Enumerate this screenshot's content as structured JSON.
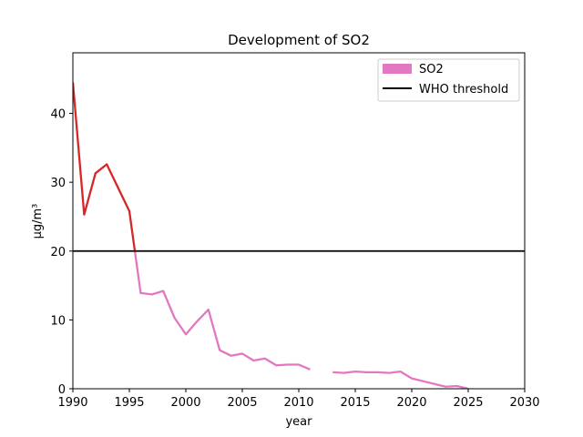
{
  "chart_data": {
    "type": "line",
    "title": "Development of SO2",
    "xlabel": "year",
    "ylabel": "µg/m³",
    "xlim": [
      1990,
      2030
    ],
    "ylim": [
      0,
      48.8
    ],
    "xticks": [
      "1990",
      "1995",
      "2000",
      "2005",
      "2010",
      "2015",
      "2020",
      "2025",
      "2030"
    ],
    "yticks": [
      "0",
      "10",
      "20",
      "30",
      "40"
    ],
    "grid": false,
    "legend_position": "top-right",
    "series": [
      {
        "name": "SO2",
        "color": "#e377c2",
        "above_threshold_color": "#d62728",
        "x": [
          1990,
          1991,
          1992,
          1993,
          1995,
          1996,
          1997,
          1998,
          1999,
          2000,
          2001,
          2002,
          2003,
          2004,
          2005,
          2006,
          2007,
          2008,
          2009,
          2010,
          2011,
          null,
          2013,
          2014,
          2015,
          2016,
          2017,
          2018,
          2019,
          2020,
          2021,
          2022,
          2023,
          2024,
          2025
        ],
        "values": [
          44.5,
          25.3,
          31.3,
          32.6,
          25.8,
          13.9,
          13.7,
          14.2,
          10.3,
          7.9,
          9.8,
          11.5,
          5.6,
          4.8,
          5.1,
          4.1,
          4.4,
          3.4,
          3.5,
          3.5,
          2.8,
          null,
          2.4,
          2.3,
          2.5,
          2.4,
          2.4,
          2.3,
          2.5,
          1.5,
          1.1,
          0.7,
          0.3,
          0.4,
          0.0
        ]
      }
    ],
    "threshold": {
      "name": "WHO threshold",
      "value": 20,
      "color": "#000000"
    }
  }
}
